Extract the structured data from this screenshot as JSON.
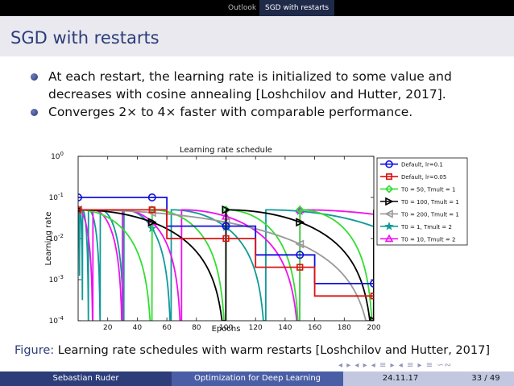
{
  "nav": {
    "items": [
      "Outlook",
      "SGD with restarts"
    ]
  },
  "slide": {
    "title": "SGD with restarts",
    "bullets": [
      "At each restart, the learning rate is initialized to some value and decreases with cosine annealing [Loshchilov and Hutter, 2017].",
      "Converges 2× to 4× faster with comparable performance."
    ],
    "caption_label": "Figure:",
    "caption_text": " Learning rate schedules with warm restarts [Loshchilov and Hutter, 2017]"
  },
  "footer": {
    "author": "Sebastian Ruder",
    "talk": "Optimization for Deep Learning",
    "date": "24.11.17",
    "page": "33 / 49",
    "colors": {
      "left": "#2d3d7a",
      "middle": "#4a5ea6",
      "right": "#c3c8e0"
    }
  },
  "nav_symbols": "◂ ▸ ◂ ▸ ◂ ≡ ▸ ◂ ≡ ▸ ≡ ∽∾",
  "chart_data": {
    "type": "line",
    "title": "Learning rate schedule",
    "xlabel": "Epochs",
    "ylabel": "Learning rate",
    "xlim": [
      0,
      200
    ],
    "ylim": [
      0.0001,
      1
    ],
    "yscale": "log",
    "xticks": [
      20,
      40,
      60,
      80,
      100,
      120,
      140,
      160,
      180,
      200
    ],
    "ytick_labels": [
      "10^0",
      "10^-1",
      "10^-2",
      "10^-3",
      "10^-4"
    ],
    "grid": false,
    "legend_position": "top-right",
    "series": [
      {
        "name": "Default, lr=0.1",
        "color": "#1111dd",
        "marker": "circle",
        "kind": "step",
        "x": [
          0,
          60,
          120,
          160,
          200
        ],
        "y": [
          0.1,
          0.02,
          0.004,
          0.0008,
          0.0008
        ]
      },
      {
        "name": "Default, lr=0.05",
        "color": "#dd1111",
        "marker": "square",
        "kind": "step",
        "x": [
          0,
          60,
          120,
          160,
          200
        ],
        "y": [
          0.05,
          0.01,
          0.002,
          0.0004,
          0.0004
        ]
      },
      {
        "name": "T0 = 50, Tmult = 1",
        "color": "#33dd33",
        "marker": "diamond",
        "kind": "sgdr",
        "T0": 50,
        "Tmult": 1
      },
      {
        "name": "T0 = 100, Tmult = 1",
        "color": "#000000",
        "marker": "triangle-right",
        "kind": "sgdr",
        "T0": 100,
        "Tmult": 1
      },
      {
        "name": "T0 = 200, Tmult = 1",
        "color": "#999999",
        "marker": "triangle-left",
        "kind": "sgdr",
        "T0": 200,
        "Tmult": 1
      },
      {
        "name": "T0 = 1, Tmult = 2",
        "color": "#119999",
        "marker": "star",
        "kind": "sgdr",
        "T0": 1,
        "Tmult": 2
      },
      {
        "name": "T0 = 10, Tmult = 2",
        "color": "#ee11ee",
        "marker": "triangle-up",
        "kind": "sgdr",
        "T0": 10,
        "Tmult": 2
      }
    ],
    "sgdr_lr_max": 0.05,
    "sgdr_lr_min": 1e-05
  }
}
